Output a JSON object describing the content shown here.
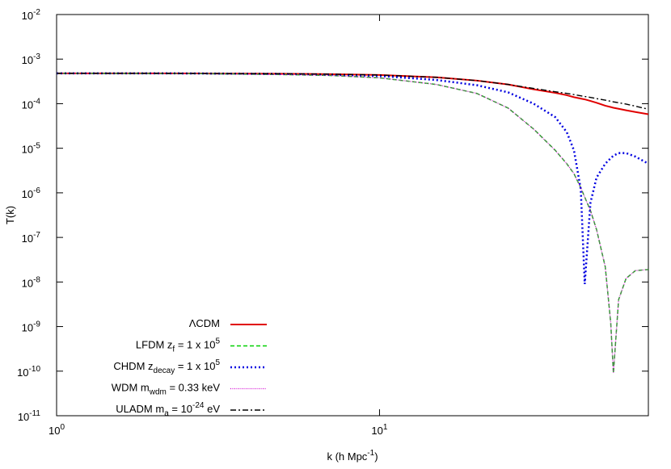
{
  "chart_data": {
    "type": "line",
    "x_label": [
      {
        "text": "k (h Mpc"
      },
      {
        "text": "-1",
        "shift": "sup"
      },
      {
        "text": ")"
      }
    ],
    "y_label": [
      {
        "text": "T(k)"
      }
    ],
    "log_x": true,
    "log_y": true,
    "grid": false,
    "legend": "bottom-left",
    "xlim": [
      1,
      68
    ],
    "ylim": [
      1e-11,
      0.01
    ],
    "xticks": [
      {
        "value": 1,
        "label": "10",
        "exponent": "0"
      },
      {
        "value": 10,
        "label": "10",
        "exponent": "1"
      }
    ],
    "yticks": [
      {
        "value": 1e-11,
        "label": "10",
        "exponent": "-11"
      },
      {
        "value": 1e-10,
        "label": "10",
        "exponent": "-10"
      },
      {
        "value": 1e-09,
        "label": "10",
        "exponent": "-9"
      },
      {
        "value": 1e-08,
        "label": "10",
        "exponent": "-8"
      },
      {
        "value": 1e-07,
        "label": "10",
        "exponent": "-7"
      },
      {
        "value": 1e-06,
        "label": "10",
        "exponent": "-6"
      },
      {
        "value": 1e-05,
        "label": "10",
        "exponent": "-5"
      },
      {
        "value": 0.0001,
        "label": "10",
        "exponent": "-4"
      },
      {
        "value": 0.001,
        "label": "10",
        "exponent": "-3"
      },
      {
        "value": 0.01,
        "label": "10",
        "exponent": "-2"
      }
    ],
    "x": [
      1,
      2,
      3,
      5,
      7,
      10,
      15,
      20,
      25,
      30,
      35,
      38,
      40,
      42,
      43.2,
      45,
      47,
      50,
      52,
      53,
      55,
      58,
      62,
      68
    ],
    "series": [
      {
        "name": [
          {
            "text": "ΛCDM"
          }
        ],
        "color": "#e00000",
        "dash": "solid",
        "values": [
          0.00048,
          0.00048,
          0.000475,
          0.00047,
          0.00046,
          0.00044,
          0.00039,
          0.00033,
          0.00027,
          0.00021,
          0.000175,
          0.000155,
          0.00014,
          0.00013,
          0.000125,
          0.000115,
          0.000105,
          9e-05,
          8.4e-05,
          8.1e-05,
          7.7e-05,
          7.1e-05,
          6.5e-05,
          5.8e-05
        ]
      },
      {
        "name": [
          {
            "text": "LFDM z"
          },
          {
            "text": "f",
            "shift": "sub"
          },
          {
            "text": " = 1 x 10"
          },
          {
            "text": "5",
            "shift": "sup"
          }
        ],
        "color": "#00d000",
        "dash": "dashed",
        "values": [
          0.00048,
          0.000475,
          0.00047,
          0.00045,
          0.00043,
          0.00038,
          0.00027,
          0.00017,
          8e-05,
          2.7e-05,
          9e-06,
          4.5e-06,
          2.7e-06,
          1.3e-06,
          8e-07,
          4e-07,
          1.5e-07,
          2.2e-08,
          1.2e-09,
          9e-11,
          4e-09,
          1.2e-08,
          1.8e-08,
          1.9e-08
        ]
      },
      {
        "name": [
          {
            "text": "CHDM z"
          },
          {
            "text": "decay",
            "shift": "sub"
          },
          {
            "text": " = 1 x 10"
          },
          {
            "text": "5",
            "shift": "sup"
          }
        ],
        "color": "#0000e0",
        "dash": "dotted",
        "values": [
          0.00048,
          0.00048,
          0.000475,
          0.000465,
          0.00045,
          0.00042,
          0.00034,
          0.00026,
          0.00018,
          0.0001,
          5e-05,
          2.3e-05,
          9e-06,
          1.2e-06,
          9e-09,
          6e-07,
          2.2e-06,
          4.5e-06,
          6e-06,
          6.8e-06,
          7.8e-06,
          7.8e-06,
          6.5e-06,
          4.5e-06
        ]
      },
      {
        "name": [
          {
            "text": "WDM m"
          },
          {
            "text": "wdm",
            "shift": "sub"
          },
          {
            "text": " = 0.33 keV"
          }
        ],
        "color": "#d000d0",
        "dash": "fine-dotted",
        "values": [
          0.00048,
          0.000475,
          0.00047,
          0.00045,
          0.00043,
          0.00038,
          0.00027,
          0.00017,
          8e-05,
          2.7e-05,
          9e-06,
          4.5e-06,
          2.7e-06,
          1.3e-06,
          8e-07,
          4e-07,
          1.5e-07,
          2.2e-08,
          1.2e-09,
          9e-11,
          4e-09,
          1.2e-08,
          1.8e-08,
          1.9e-08
        ]
      },
      {
        "name": [
          {
            "text": "ULADM m"
          },
          {
            "text": "a",
            "shift": "sub"
          },
          {
            "text": " = 10"
          },
          {
            "text": "-24",
            "shift": "sup"
          },
          {
            "text": " eV"
          }
        ],
        "color": "#000000",
        "dash": "dash-dot",
        "values": [
          0.00048,
          0.00048,
          0.000475,
          0.00047,
          0.00046,
          0.00044,
          0.00039,
          0.00033,
          0.00027,
          0.00022,
          0.000185,
          0.00017,
          0.00016,
          0.00015,
          0.000145,
          0.000138,
          0.00013,
          0.00012,
          0.000113,
          0.00011,
          0.000105,
          9.8e-05,
          8.8e-05,
          7.5e-05
        ]
      }
    ]
  }
}
